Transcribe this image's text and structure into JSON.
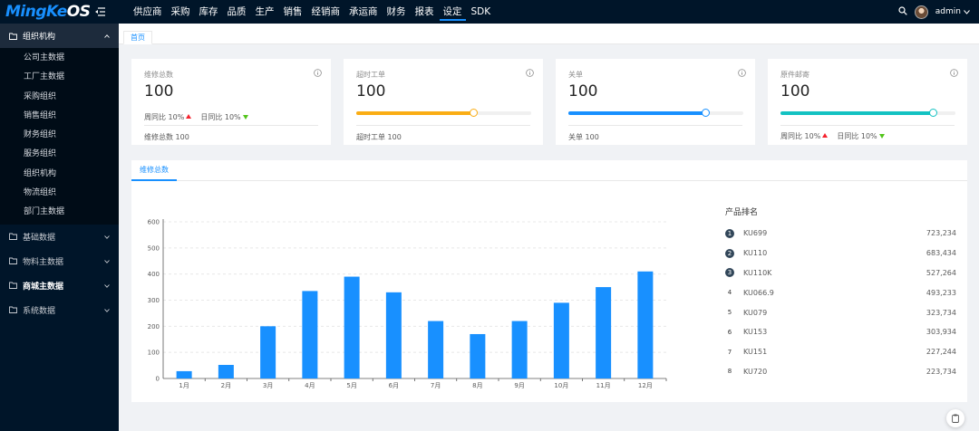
{
  "app": {
    "logo_main": "MingKe",
    "logo_o": "OS"
  },
  "topnav": [
    "供应商",
    "采购",
    "库存",
    "品质",
    "生产",
    "销售",
    "经销商",
    "承运商",
    "财务",
    "报表",
    "设定",
    "SDK"
  ],
  "topnav_active": 10,
  "user": {
    "name": "admin"
  },
  "sidebar": {
    "open_group": "组织机构",
    "open_items": [
      "公司主数据",
      "工厂主数据",
      "采购组织",
      "销售组织",
      "财务组织",
      "服务组织",
      "组织机构",
      "物流组织",
      "部门主数据"
    ],
    "groups": [
      "基础数据",
      "物料主数据",
      "商城主数据",
      "系统数据"
    ]
  },
  "tabs": {
    "home": "首页"
  },
  "cards": [
    {
      "title": "维修总数",
      "value": "100",
      "trend_week": "周同比 10%",
      "trend_day": "日同比 10%",
      "footer": "维修总数  100"
    },
    {
      "title": "超时工单",
      "value": "100",
      "progress": 0.67,
      "color": "#faad14",
      "footer": "超时工单  100"
    },
    {
      "title": "关单",
      "value": "100",
      "progress": 0.78,
      "color": "#1890ff",
      "footer": "关单  100"
    },
    {
      "title": "原件邮寄",
      "value": "100",
      "progress": 0.87,
      "color": "#13c2c2",
      "trend_week": "周同比 10%",
      "trend_day": "日同比 10%"
    }
  ],
  "chart_tab": "维修总数",
  "chart_data": {
    "type": "bar",
    "categories": [
      "1月",
      "2月",
      "3月",
      "4月",
      "5月",
      "6月",
      "7月",
      "8月",
      "9月",
      "10月",
      "11月",
      "12月"
    ],
    "values": [
      28,
      52,
      200,
      335,
      390,
      330,
      220,
      170,
      220,
      290,
      350,
      410
    ],
    "ylim": [
      0,
      600
    ],
    "yticks": [
      0,
      100,
      200,
      300,
      400,
      500,
      600
    ],
    "color": "#1890ff",
    "grid": true
  },
  "ranking": {
    "title": "产品排名",
    "items": [
      {
        "rank": "1",
        "name": "KU699",
        "value": "723,234"
      },
      {
        "rank": "2",
        "name": "KU110",
        "value": "683,434"
      },
      {
        "rank": "3",
        "name": "KU110K",
        "value": "527,264"
      },
      {
        "rank": "4",
        "name": "KU066.9",
        "value": "493,233"
      },
      {
        "rank": "5",
        "name": "KU079",
        "value": "323,734"
      },
      {
        "rank": "6",
        "name": "KU153",
        "value": "303,934"
      },
      {
        "rank": "7",
        "name": "KU151",
        "value": "227,244"
      },
      {
        "rank": "8",
        "name": "KU720",
        "value": "223,734"
      }
    ]
  }
}
